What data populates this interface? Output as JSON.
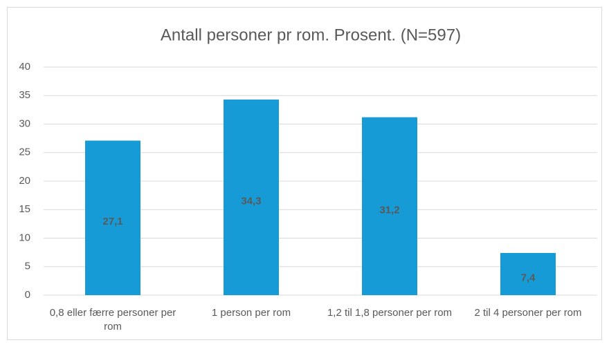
{
  "chart_data": {
    "type": "bar",
    "title": "Antall personer pr rom. Prosent. (N=597)",
    "categories": [
      "0,8 eller færre personer per rom",
      "1 person per rom",
      "1,2 til 1,8 personer per rom",
      "2 til 4 personer per rom"
    ],
    "values": [
      27.1,
      34.3,
      31.2,
      7.4
    ],
    "value_labels": [
      "27,1",
      "34,3",
      "31,2",
      "7,4"
    ],
    "color": "#179bd7",
    "ylim": [
      0,
      40
    ],
    "yticks": [
      0,
      5,
      10,
      15,
      20,
      25,
      30,
      35,
      40
    ],
    "grid": true
  }
}
